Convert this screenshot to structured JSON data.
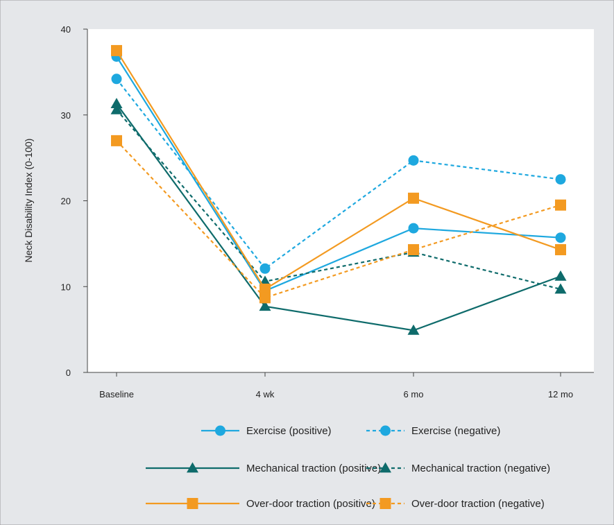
{
  "chart_data": {
    "type": "line",
    "title": "",
    "xlabel": "",
    "ylabel": "Neck Disability Index (0-100)",
    "categories": [
      "Baseline",
      "4 wk",
      "6 mo",
      "12 mo"
    ],
    "ylim": [
      0,
      40
    ],
    "yticks": [
      0,
      10,
      20,
      30,
      40
    ],
    "grid": false,
    "legend_position": "bottom",
    "series": [
      {
        "name": "Exercise (positive)",
        "values": [
          36.8,
          9.5,
          16.8,
          15.7
        ],
        "color": "#1ea8df",
        "style": "solid",
        "marker": "circle"
      },
      {
        "name": "Exercise (negative)",
        "values": [
          34.2,
          12.1,
          24.7,
          22.5
        ],
        "color": "#1ea8df",
        "style": "dashed",
        "marker": "circle"
      },
      {
        "name": "Mechanical traction (positive)",
        "values": [
          31.3,
          7.7,
          4.9,
          11.2
        ],
        "color": "#0e6b6b",
        "style": "solid",
        "marker": "triangle"
      },
      {
        "name": "Mechanical traction (negative)",
        "values": [
          30.6,
          10.6,
          14.0,
          9.7
        ],
        "color": "#0e6b6b",
        "style": "dashed",
        "marker": "triangle"
      },
      {
        "name": "Over-door traction (positive)",
        "values": [
          37.5,
          9.7,
          20.3,
          14.3
        ],
        "color": "#f39a21",
        "style": "solid",
        "marker": "square"
      },
      {
        "name": "Over-door traction (negative)",
        "values": [
          27.0,
          8.7,
          14.3,
          19.5
        ],
        "color": "#f39a21",
        "style": "dashed",
        "marker": "square"
      }
    ]
  },
  "colors": {
    "background": "#e5e7ea",
    "plot_background": "#ffffff",
    "axis": "#444444"
  }
}
